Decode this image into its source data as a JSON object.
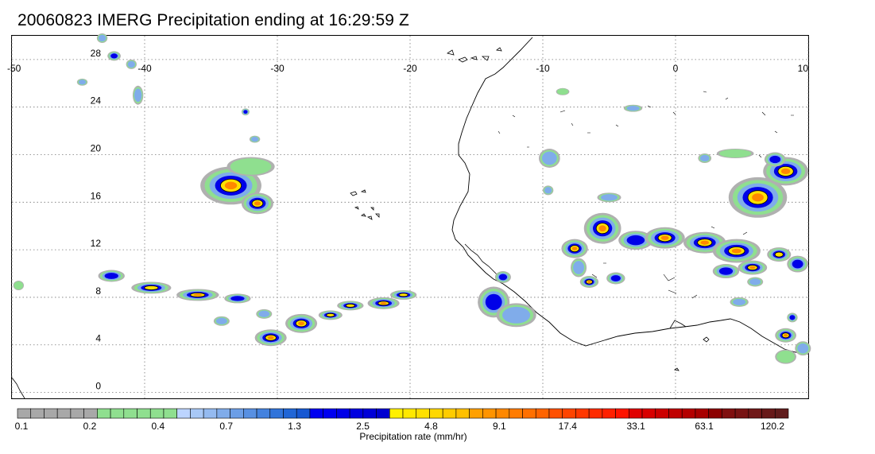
{
  "title": "20060823 IMERG Precipitation ending at 16:29:59 Z",
  "map": {
    "lon_range": [
      -50,
      10
    ],
    "lat_range": [
      -0.5,
      30
    ],
    "lon_ticks": [
      {
        "value": -50,
        "label": "-50"
      },
      {
        "value": -40,
        "label": "-40"
      },
      {
        "value": -30,
        "label": "-30"
      },
      {
        "value": -20,
        "label": "-20"
      },
      {
        "value": -10,
        "label": "-10"
      },
      {
        "value": 0,
        "label": "0"
      },
      {
        "value": 10,
        "label": "10"
      }
    ],
    "lat_ticks": [
      {
        "value": 28,
        "label": "28"
      },
      {
        "value": 24,
        "label": "24"
      },
      {
        "value": 20,
        "label": "20"
      },
      {
        "value": 16,
        "label": "16"
      },
      {
        "value": 12,
        "label": "12"
      },
      {
        "value": 8,
        "label": "8"
      },
      {
        "value": 4,
        "label": "4"
      },
      {
        "value": 0,
        "label": "0"
      }
    ],
    "grid": true,
    "grid_style": "dotted",
    "rain_cells": [
      {
        "lon": -33.5,
        "lat": 17.4,
        "rx": 2.3,
        "ry": 1.6,
        "peak": 5
      },
      {
        "lon": -31.5,
        "lat": 15.9,
        "rx": 1.2,
        "ry": 0.9,
        "peak": 5
      },
      {
        "lon": -32.0,
        "lat": 19.0,
        "rx": 1.8,
        "ry": 0.8,
        "peak": 1
      },
      {
        "lon": -42.5,
        "lat": 9.8,
        "rx": 1.0,
        "ry": 0.5,
        "peak": 3
      },
      {
        "lon": -39.5,
        "lat": 8.8,
        "rx": 1.5,
        "ry": 0.5,
        "peak": 4
      },
      {
        "lon": -36.0,
        "lat": 8.2,
        "rx": 1.6,
        "ry": 0.5,
        "peak": 5
      },
      {
        "lon": -33.0,
        "lat": 7.9,
        "rx": 1.0,
        "ry": 0.4,
        "peak": 3
      },
      {
        "lon": -30.5,
        "lat": 4.6,
        "rx": 1.2,
        "ry": 0.7,
        "peak": 5
      },
      {
        "lon": -28.2,
        "lat": 5.8,
        "rx": 1.2,
        "ry": 0.8,
        "peak": 5
      },
      {
        "lon": -26.0,
        "lat": 6.5,
        "rx": 0.9,
        "ry": 0.4,
        "peak": 4
      },
      {
        "lon": -24.5,
        "lat": 7.3,
        "rx": 1.0,
        "ry": 0.4,
        "peak": 4
      },
      {
        "lon": -22.0,
        "lat": 7.5,
        "rx": 1.2,
        "ry": 0.5,
        "peak": 5
      },
      {
        "lon": -20.5,
        "lat": 8.2,
        "rx": 1.0,
        "ry": 0.4,
        "peak": 4
      },
      {
        "lon": -13.7,
        "lat": 7.6,
        "rx": 1.2,
        "ry": 1.3,
        "peak": 3
      },
      {
        "lon": -12.0,
        "lat": 6.5,
        "rx": 1.5,
        "ry": 1.0,
        "peak": 2
      },
      {
        "lon": -13.0,
        "lat": 9.7,
        "rx": 0.6,
        "ry": 0.5,
        "peak": 3
      },
      {
        "lon": -9.5,
        "lat": 19.7,
        "rx": 0.8,
        "ry": 0.8,
        "peak": 2
      },
      {
        "lon": -9.6,
        "lat": 17.0,
        "rx": 0.4,
        "ry": 0.4,
        "peak": 2
      },
      {
        "lon": -5.5,
        "lat": 13.8,
        "rx": 1.4,
        "ry": 1.3,
        "peak": 5
      },
      {
        "lon": -7.6,
        "lat": 12.1,
        "rx": 1.0,
        "ry": 0.8,
        "peak": 5
      },
      {
        "lon": -7.3,
        "lat": 10.5,
        "rx": 0.6,
        "ry": 0.8,
        "peak": 2
      },
      {
        "lon": -6.5,
        "lat": 9.3,
        "rx": 0.7,
        "ry": 0.5,
        "peak": 5
      },
      {
        "lon": -4.5,
        "lat": 9.6,
        "rx": 0.7,
        "ry": 0.5,
        "peak": 3
      },
      {
        "lon": -5.0,
        "lat": 16.4,
        "rx": 0.9,
        "ry": 0.4,
        "peak": 2
      },
      {
        "lon": -3.0,
        "lat": 12.8,
        "rx": 1.3,
        "ry": 0.8,
        "peak": 3
      },
      {
        "lon": -0.8,
        "lat": 13.0,
        "rx": 1.5,
        "ry": 0.9,
        "peak": 5
      },
      {
        "lon": 2.2,
        "lat": 12.6,
        "rx": 1.6,
        "ry": 0.9,
        "peak": 5
      },
      {
        "lon": 4.6,
        "lat": 11.9,
        "rx": 1.8,
        "ry": 1.0,
        "peak": 5
      },
      {
        "lon": 3.8,
        "lat": 10.2,
        "rx": 1.0,
        "ry": 0.6,
        "peak": 3
      },
      {
        "lon": 5.8,
        "lat": 10.5,
        "rx": 1.1,
        "ry": 0.6,
        "peak": 5
      },
      {
        "lon": 7.8,
        "lat": 11.6,
        "rx": 0.9,
        "ry": 0.6,
        "peak": 4
      },
      {
        "lon": 9.2,
        "lat": 10.8,
        "rx": 0.8,
        "ry": 0.7,
        "peak": 3
      },
      {
        "lon": 6.2,
        "lat": 16.4,
        "rx": 2.2,
        "ry": 1.7,
        "peak": 5
      },
      {
        "lon": 8.3,
        "lat": 18.6,
        "rx": 1.7,
        "ry": 1.2,
        "peak": 5
      },
      {
        "lon": 7.5,
        "lat": 19.6,
        "rx": 0.8,
        "ry": 0.6,
        "peak": 3
      },
      {
        "lon": 4.5,
        "lat": 20.1,
        "rx": 1.4,
        "ry": 0.4,
        "peak": 1
      },
      {
        "lon": 2.2,
        "lat": 19.7,
        "rx": 0.5,
        "ry": 0.4,
        "peak": 2
      },
      {
        "lon": 8.3,
        "lat": 4.8,
        "rx": 0.8,
        "ry": 0.6,
        "peak": 5
      },
      {
        "lon": 8.8,
        "lat": 6.3,
        "rx": 0.4,
        "ry": 0.4,
        "peak": 3
      },
      {
        "lon": 9.6,
        "lat": 3.7,
        "rx": 0.6,
        "ry": 0.6,
        "peak": 2
      },
      {
        "lon": 4.8,
        "lat": 7.6,
        "rx": 0.7,
        "ry": 0.4,
        "peak": 2
      },
      {
        "lon": 6.0,
        "lat": 9.3,
        "rx": 0.6,
        "ry": 0.4,
        "peak": 2
      },
      {
        "lon": -34.2,
        "lat": 6.0,
        "rx": 0.6,
        "ry": 0.4,
        "peak": 2
      },
      {
        "lon": -31.0,
        "lat": 6.6,
        "rx": 0.6,
        "ry": 0.4,
        "peak": 2
      },
      {
        "lon": -41.0,
        "lat": 27.6,
        "rx": 0.4,
        "ry": 0.4,
        "peak": 2
      },
      {
        "lon": -40.5,
        "lat": 25.0,
        "rx": 0.4,
        "ry": 0.8,
        "peak": 2
      },
      {
        "lon": -42.3,
        "lat": 28.3,
        "rx": 0.5,
        "ry": 0.4,
        "peak": 3
      },
      {
        "lon": -32.4,
        "lat": 23.6,
        "rx": 0.3,
        "ry": 0.3,
        "peak": 3
      },
      {
        "lon": -31.7,
        "lat": 21.3,
        "rx": 0.4,
        "ry": 0.3,
        "peak": 2
      },
      {
        "lon": -44.7,
        "lat": 26.1,
        "rx": 0.4,
        "ry": 0.3,
        "peak": 2
      },
      {
        "lon": -43.2,
        "lat": 29.8,
        "rx": 0.4,
        "ry": 0.4,
        "peak": 2
      },
      {
        "lon": -3.2,
        "lat": 23.9,
        "rx": 0.7,
        "ry": 0.3,
        "peak": 2
      },
      {
        "lon": -8.5,
        "lat": 25.3,
        "rx": 0.5,
        "ry": 0.3,
        "peak": 1
      },
      {
        "lon": -49.5,
        "lat": 9.0,
        "rx": 0.4,
        "ry": 0.4,
        "peak": 1
      },
      {
        "lon": 8.3,
        "lat": 3.0,
        "rx": 0.8,
        "ry": 0.6,
        "peak": 1
      }
    ]
  },
  "colorbar": {
    "label": "Precipitation rate (mm/hr)",
    "segments": [
      "#a8a8a8",
      "#a8a8a8",
      "#a8a8a8",
      "#a8a8a8",
      "#a8a8a8",
      "#a8a8a8",
      "#8fdf8f",
      "#8fdf8f",
      "#8fdf8f",
      "#8fdf8f",
      "#8fdf8f",
      "#8fdf8f",
      "#bcd4ff",
      "#a8c8f6",
      "#94baf0",
      "#80acea",
      "#6c9ee6",
      "#5890e2",
      "#4482de",
      "#3074da",
      "#2066d6",
      "#1658d2",
      "#0000f0",
      "#0000f0",
      "#0000e8",
      "#0000e0",
      "#0000d8",
      "#0000d0",
      "#fff000",
      "#ffe800",
      "#ffe000",
      "#ffd800",
      "#ffcc00",
      "#ffc000",
      "#ffa000",
      "#ff9400",
      "#ff8800",
      "#ff7c00",
      "#ff7000",
      "#ff6400",
      "#ff5000",
      "#ff4400",
      "#ff3800",
      "#ff2c00",
      "#ff2000",
      "#ff1400",
      "#e00000",
      "#d80000",
      "#cc0000",
      "#c00000",
      "#b40000",
      "#a80000",
      "#8c0000",
      "#801010",
      "#781414",
      "#701818",
      "#681a1a",
      "#601c1c"
    ],
    "ticks": [
      "0.1",
      "0.2",
      "0.4",
      "0.7",
      "1.3",
      "2.5",
      "4.8",
      "9.1",
      "17.4",
      "33.1",
      "63.1",
      "120.2"
    ]
  }
}
